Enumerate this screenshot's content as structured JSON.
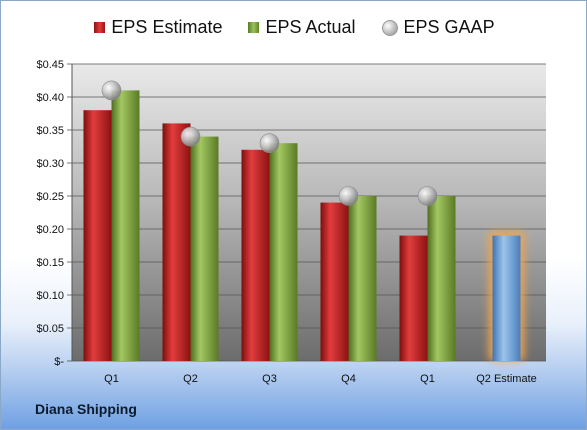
{
  "chart_data": {
    "type": "bar",
    "categories": [
      "Q1",
      "Q2",
      "Q3",
      "Q4",
      "Q1",
      "Q2 Estimate"
    ],
    "series": [
      {
        "name": "EPS Estimate",
        "values": [
          0.38,
          0.36,
          0.32,
          0.24,
          0.19,
          0.19
        ],
        "color": "#c72a2a"
      },
      {
        "name": "EPS Actual",
        "values": [
          0.41,
          0.34,
          0.33,
          0.25,
          0.25,
          null
        ],
        "color": "#86aa45"
      },
      {
        "name": "EPS GAAP",
        "values": [
          0.41,
          0.34,
          0.33,
          0.25,
          0.25,
          null
        ],
        "color": "#b5b5b5"
      }
    ],
    "highlight": {
      "category_index": 5,
      "color": "#6a9fd6",
      "glow": "#f3a64a"
    },
    "yticks": [
      "$-",
      "$0.05",
      "$0.10",
      "$0.15",
      "$0.20",
      "$0.25",
      "$0.30",
      "$0.35",
      "$0.40",
      "$0.45"
    ],
    "ylim": [
      0,
      0.45
    ],
    "grid": true,
    "legend_position": "top"
  },
  "company_name": "Diana Shipping"
}
